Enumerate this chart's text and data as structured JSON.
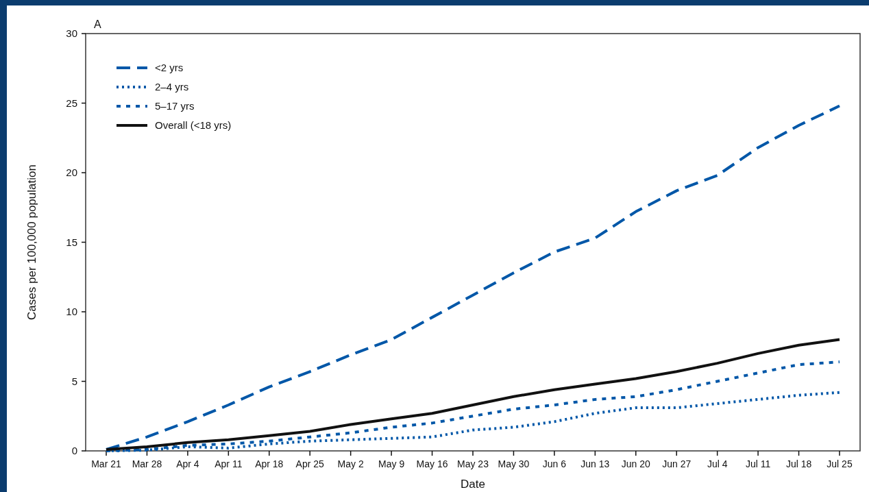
{
  "chart_data": {
    "type": "line",
    "title": "A",
    "xlabel": "Date",
    "ylabel": "Cases per 100,000 population",
    "categories": [
      "Mar 21",
      "Mar 28",
      "Apr 4",
      "Apr 11",
      "Apr 18",
      "Apr 25",
      "May 2",
      "May 9",
      "May 16",
      "May 23",
      "May 30",
      "Jun 6",
      "Jun 13",
      "Jun 20",
      "Jun 27",
      "Jul 4",
      "Jul 11",
      "Jul 18",
      "Jul 25"
    ],
    "ylim": [
      0,
      30
    ],
    "yticks": [
      0,
      5,
      10,
      15,
      20,
      25,
      30
    ],
    "grid": false,
    "legend": "top left",
    "series": [
      {
        "name": "<2 yrs",
        "color": "#0057a8",
        "line_style": "dashed",
        "values": [
          0.1,
          1.0,
          2.1,
          3.3,
          4.6,
          5.7,
          6.9,
          8.0,
          9.6,
          11.2,
          12.8,
          14.3,
          15.3,
          17.2,
          18.7,
          19.8,
          21.8,
          23.4,
          24.8
        ]
      },
      {
        "name": "2–4 yrs",
        "color": "#0057a8",
        "line_style": "dotted",
        "values": [
          0,
          0.05,
          0.3,
          0.2,
          0.5,
          0.7,
          0.8,
          0.9,
          1.0,
          1.5,
          1.7,
          2.1,
          2.7,
          3.1,
          3.1,
          3.4,
          3.7,
          4.0,
          4.2
        ]
      },
      {
        "name": "5–17 yrs",
        "color": "#0057a8",
        "line_style": "dotted",
        "values": [
          0,
          0.1,
          0.4,
          0.5,
          0.7,
          1.0,
          1.3,
          1.7,
          2.0,
          2.5,
          3.0,
          3.3,
          3.7,
          3.9,
          4.4,
          5.0,
          5.6,
          6.2,
          6.4
        ]
      },
      {
        "name": "Overall (<18 yrs)",
        "color": "#111111",
        "line_style": "solid",
        "values": [
          0.1,
          0.3,
          0.6,
          0.8,
          1.1,
          1.4,
          1.9,
          2.3,
          2.7,
          3.3,
          3.9,
          4.4,
          4.8,
          5.2,
          5.7,
          6.3,
          7.0,
          7.6,
          8.0
        ]
      }
    ]
  }
}
